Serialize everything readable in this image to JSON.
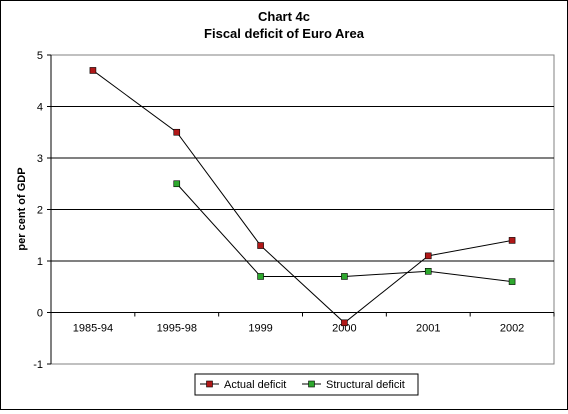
{
  "chart_data": {
    "type": "line",
    "title": [
      "Chart 4c",
      "Fiscal deficit of Euro Area"
    ],
    "ylabel": "per cent of GDP",
    "xlabel": "",
    "categories": [
      "1985-94",
      "1995-98",
      "1999",
      "2000",
      "2001",
      "2002"
    ],
    "ylim": [
      -1,
      5
    ],
    "yticks": [
      -1,
      0,
      1,
      2,
      3,
      4,
      5
    ],
    "grid": true,
    "legend_position": "bottom",
    "series": [
      {
        "name": "Actual deficit",
        "values": [
          4.7,
          3.5,
          1.3,
          -0.2,
          1.1,
          1.4
        ],
        "line_color": "#000000",
        "marker_color": "#b01818"
      },
      {
        "name": "Structural deficit",
        "values": [
          null,
          2.5,
          0.7,
          0.7,
          0.8,
          0.6
        ],
        "line_color": "#000000",
        "marker_color": "#2ea82e"
      }
    ]
  }
}
